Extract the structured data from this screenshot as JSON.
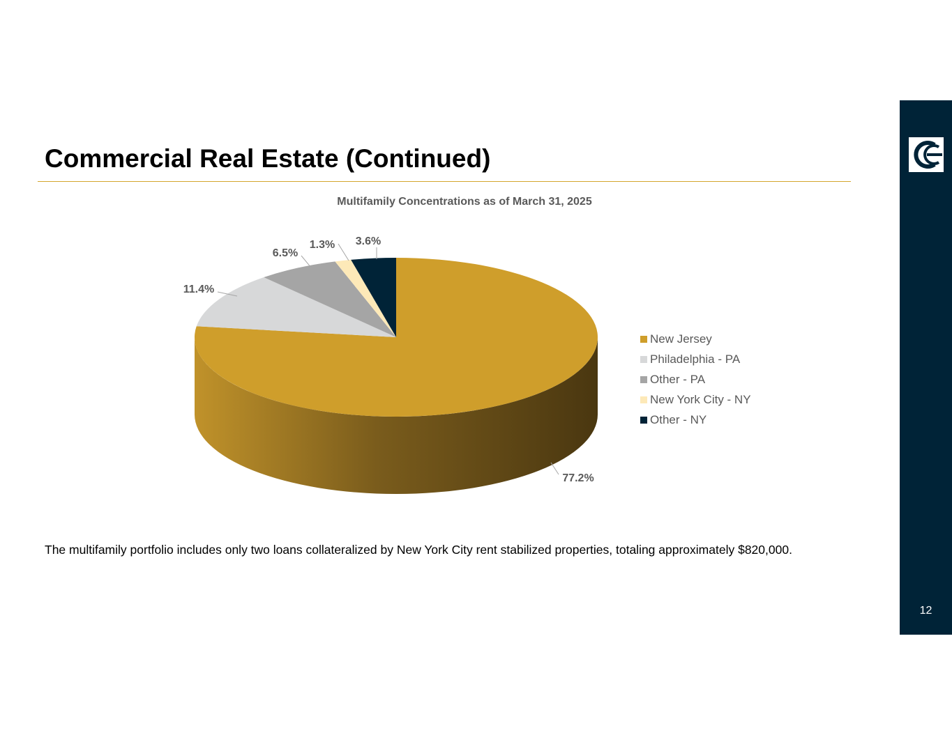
{
  "slide": {
    "title": "Commercial Real Estate (Continued)",
    "page_number": "12",
    "body_text": "The multifamily portfolio includes only two loans collateralized by New York City rent stabilized properties, totaling approximately $820,000."
  },
  "colors": {
    "sidebar": "#002337",
    "accent": "#d4a52c"
  },
  "chart_data": {
    "type": "pie",
    "title": "Multifamily Concentrations as of March 31, 2025",
    "legend_position": "right",
    "three_d": true,
    "slices": [
      {
        "label": "New Jersey",
        "value": 77.2,
        "display": "77.2%",
        "color": "#cf9e2b"
      },
      {
        "label": "Philadelphia - PA",
        "value": 11.4,
        "display": "11.4%",
        "color": "#d7d8d9"
      },
      {
        "label": "Other - PA",
        "value": 6.5,
        "display": "6.5%",
        "color": "#a5a5a5"
      },
      {
        "label": "New York City - NY",
        "value": 1.3,
        "display": "1.3%",
        "color": "#fde9b8"
      },
      {
        "label": "Other - NY",
        "value": 3.6,
        "display": "3.6%",
        "color": "#002337"
      }
    ]
  }
}
